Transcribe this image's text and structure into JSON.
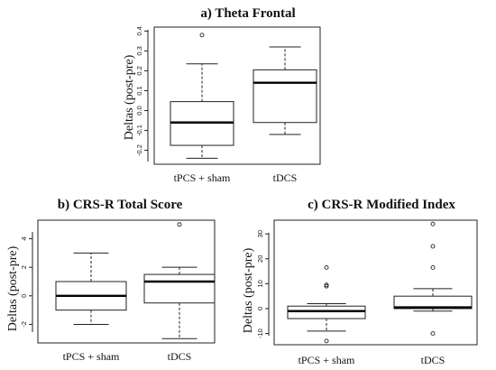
{
  "chart_data": [
    {
      "type": "box",
      "title": "a)  Theta Frontal",
      "ylabel": "Deltas (post-pre)",
      "ylim": [
        -0.27,
        0.42
      ],
      "yticks": [
        -0.2,
        -0.1,
        0.0,
        0.1,
        0.2,
        0.3,
        0.4
      ],
      "ytick_labels": [
        "-0.2",
        "-0.1",
        "0.0",
        "0.1",
        "0.2",
        "0.3",
        "0.4"
      ],
      "categories": [
        "tPCS + sham",
        "tDCS"
      ],
      "boxes": [
        {
          "name": "tPCS + sham",
          "whisker_low": -0.24,
          "q1": -0.175,
          "median": -0.06,
          "q3": 0.045,
          "whisker_high": 0.235,
          "outliers": [
            0.38
          ]
        },
        {
          "name": "tDCS",
          "whisker_low": -0.12,
          "q1": -0.06,
          "median": 0.14,
          "q3": 0.205,
          "whisker_high": 0.32,
          "outliers": []
        }
      ]
    },
    {
      "type": "box",
      "title": "b)  CRS-R Total Score",
      "ylabel": "Deltas (post-pre)",
      "ylim": [
        -3.3,
        5.3
      ],
      "yticks": [
        -2,
        0,
        2,
        4
      ],
      "ytick_labels": [
        "-2",
        "0",
        "2",
        "4"
      ],
      "categories": [
        "tPCS + sham",
        "tDCS"
      ],
      "boxes": [
        {
          "name": "tPCS + sham",
          "whisker_low": -2,
          "q1": -1,
          "median": 0,
          "q3": 1,
          "whisker_high": 3,
          "outliers": []
        },
        {
          "name": "tDCS",
          "whisker_low": -3,
          "q1": -0.5,
          "median": 1,
          "q3": 1.5,
          "whisker_high": 2,
          "outliers": [
            5
          ]
        }
      ]
    },
    {
      "type": "box",
      "title": "c)   CRS-R Modified Index",
      "ylabel": "Deltas (post-pre)",
      "ylim": [
        -14.5,
        35.5
      ],
      "yticks": [
        -10,
        0,
        10,
        20,
        30
      ],
      "ytick_labels": [
        "-10",
        "0",
        "10",
        "20",
        "30"
      ],
      "categories": [
        "tPCS + sham",
        "tDCS"
      ],
      "boxes": [
        {
          "name": "tPCS + sham",
          "whisker_low": -9,
          "q1": -4,
          "median": -1,
          "q3": 1,
          "whisker_high": 2,
          "outliers": [
            16.5,
            9.5,
            9,
            -13
          ]
        },
        {
          "name": "tDCS",
          "whisker_low": -1,
          "q1": 0,
          "median": 0.5,
          "q3": 5,
          "whisker_high": 8,
          "outliers": [
            34,
            25,
            16.5,
            -10
          ]
        }
      ]
    }
  ]
}
